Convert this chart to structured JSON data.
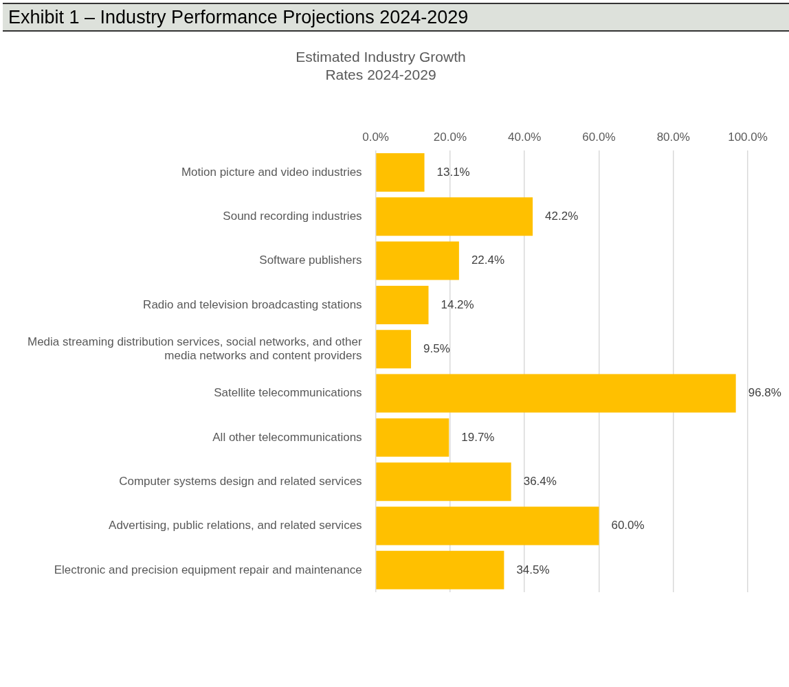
{
  "chart_data": {
    "type": "bar",
    "orientation": "horizontal",
    "title": "Exhibit 1 – Industry Performance Projections 2024-2029",
    "subtitle": "Estimated Industry Growth Rates 2024-2029",
    "categories": [
      "Motion picture and video industries",
      "Sound recording industries",
      "Software publishers",
      "Radio and television broadcasting stations",
      "Media streaming distribution services, social networks, and other media networks and content providers",
      "Satellite telecommunications",
      "All other telecommunications",
      "Computer systems design and related services",
      "Advertising, public relations, and related services",
      "Electronic and precision equipment repair and maintenance"
    ],
    "values": [
      13.1,
      42.2,
      22.4,
      14.2,
      9.5,
      96.8,
      19.7,
      36.4,
      60.0,
      34.5
    ],
    "value_labels": [
      "13.1%",
      "42.2%",
      "22.4%",
      "14.2%",
      "9.5%",
      "96.8%",
      "19.7%",
      "36.4%",
      "60.0%",
      "34.5%"
    ],
    "color": "#ffc000",
    "xlim": [
      0,
      100
    ],
    "xticks": [
      {
        "value": 0,
        "label": "0.0%"
      },
      {
        "value": 20,
        "label": "20.0%"
      },
      {
        "value": 40,
        "label": "40.0%"
      },
      {
        "value": 60,
        "label": "60.0%"
      },
      {
        "value": 80,
        "label": "80.0%"
      },
      {
        "value": 100,
        "label": "100.0%"
      }
    ],
    "grid": "x"
  }
}
